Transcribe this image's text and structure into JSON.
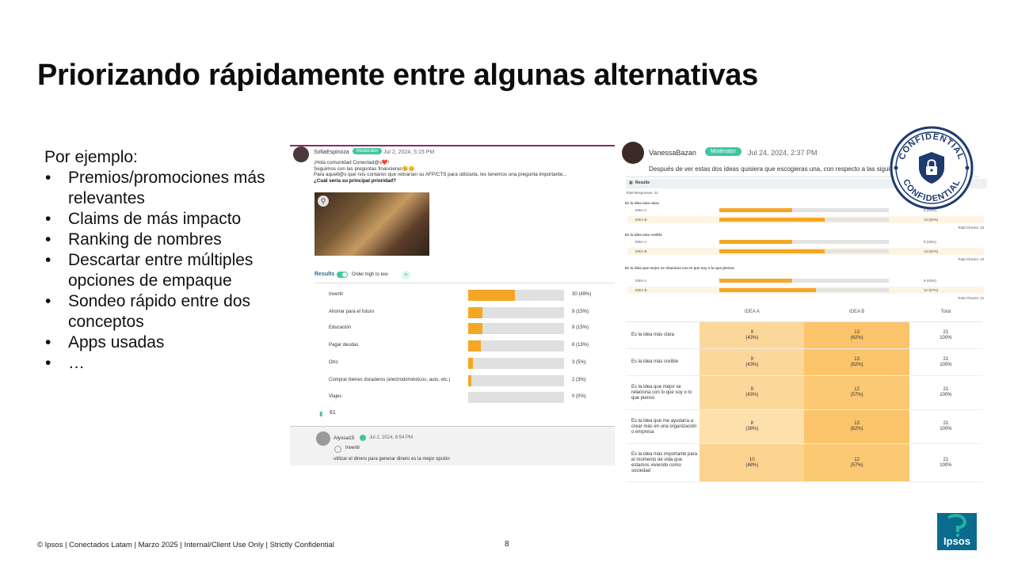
{
  "slide": {
    "title": "Priorizando rápidamente entre algunas alternativas",
    "intro": "Por ejemplo:",
    "bullets": [
      "Premios/promociones más relevantes",
      "Claims de más impacto",
      "Ranking de nombres",
      "Descartar entre múltiples opciones de empaque",
      "Sondeo rápido entre dos conceptos",
      "Apps usadas",
      "…"
    ],
    "footer": "© Ipsos | Conectados Latam | Marzo 2025 | Internal/Client Use Only | Strictly Confidential",
    "page_number": "8",
    "logo_text": "Ipsos",
    "seal_text_top": "CONFIDENTIAL",
    "seal_text_bottom": "CONFIDENTIAL"
  },
  "post1": {
    "author": "SofiaEspinoza",
    "badge": "Moderator",
    "date": "Jul 2, 2024, 5:15 PM",
    "line1": "¡Hola comunidad Conectad@s❤️!",
    "line2": "Seguimos con las preguntas financieras😉😊",
    "line3": "Para aquell@s que nos contaron que retirarían su AFP/CTS para utilizarla, les tenemos una pregunta importante...",
    "question": "¿Cuál sería su principal prioridad?",
    "results_label": "Results",
    "order_label": "Order high to low",
    "results": [
      {
        "label": "Invertir",
        "value": 0.49,
        "text": "30 (49%)"
      },
      {
        "label": "Ahorrar para el futuro",
        "value": 0.15,
        "text": "9 (15%)"
      },
      {
        "label": "Educación",
        "value": 0.15,
        "text": "9 (15%)"
      },
      {
        "label": "Pagar deudas",
        "value": 0.13,
        "text": "8 (13%)"
      },
      {
        "label": "Otro",
        "value": 0.05,
        "text": "3 (5%)"
      },
      {
        "label": "Comprar bienes duraderos (electrodomésticos, auto, etc.)",
        "value": 0.03,
        "text": "2 (3%)"
      },
      {
        "label": "Viajes",
        "value": 0.0,
        "text": "0 (0%)"
      }
    ],
    "comment_count": "61",
    "reply": {
      "author": "Alyssa15",
      "date": "Jul 2, 2024, 6:54 PM",
      "option": "Invertir",
      "text": "utilizar el dinero para generar dinero es la mejor opción"
    }
  },
  "post2": {
    "author": "VanessaBazan",
    "badge": "Moderator",
    "date": "Jul 24, 2024, 2:37 PM",
    "text": "Después de ver estas dos ideas quisiera que escogieras una, con respecto a las siguientes frases",
    "results_label": "Results",
    "mini_total": "Total Responses: 21",
    "mini_groups": [
      {
        "title": "Es la idea más clara",
        "rows": [
          {
            "label": "IDEA A",
            "value": 0.43,
            "text": "9 (43%)"
          },
          {
            "label": "IDEA B",
            "value": 0.62,
            "text": "13 (62%)"
          }
        ],
        "total": "Total Checks: 22"
      },
      {
        "title": "Es la idea más creíble",
        "rows": [
          {
            "label": "IDEA A",
            "value": 0.43,
            "text": "9 (43%)"
          },
          {
            "label": "IDEA B",
            "value": 0.62,
            "text": "13 (62%)"
          }
        ],
        "total": "Total Checks: 22"
      },
      {
        "title": "Es la idea que mejor se relaciona con lo que soy o lo que pienso",
        "rows": [
          {
            "label": "IDEA A",
            "value": 0.43,
            "text": "9 (43%)"
          },
          {
            "label": "IDEA B",
            "value": 0.57,
            "text": "12 (57%)"
          }
        ],
        "total": "Total Checks: 21"
      }
    ],
    "table": {
      "headers": [
        "",
        "IDEA A",
        "IDEA B",
        "Total"
      ],
      "rows": [
        {
          "q": "Es la idea más clara",
          "a": "9",
          "ap": "(43%)",
          "b": "13",
          "bp": "(62%)",
          "t": "21",
          "tp": "100%"
        },
        {
          "q": "Es la idea más creíble",
          "a": "9",
          "ap": "(43%)",
          "b": "13",
          "bp": "(62%)",
          "t": "21",
          "tp": "100%"
        },
        {
          "q": "Es la idea que mejor se relaciona con lo que soy o lo que pienso",
          "a": "9",
          "ap": "(43%)",
          "b": "12",
          "bp": "(57%)",
          "t": "21",
          "tp": "100%"
        },
        {
          "q": "Es la idea que me ayudaría a crear más en una organización o empresa",
          "a": "8",
          "ap": "(38%)",
          "b": "13",
          "bp": "(62%)",
          "t": "21",
          "tp": "100%"
        },
        {
          "q": "Es la idea más importante para el momento de vida que estamos viviendo como sociedad",
          "a": "10",
          "ap": "(48%)",
          "b": "12",
          "bp": "(57%)",
          "t": "21",
          "tp": "100%"
        }
      ]
    }
  },
  "colors": {
    "accent": "#f5a623",
    "badge": "#3fc6a0",
    "logo": "#0a6b8f",
    "seal": "#1e3a6e"
  }
}
